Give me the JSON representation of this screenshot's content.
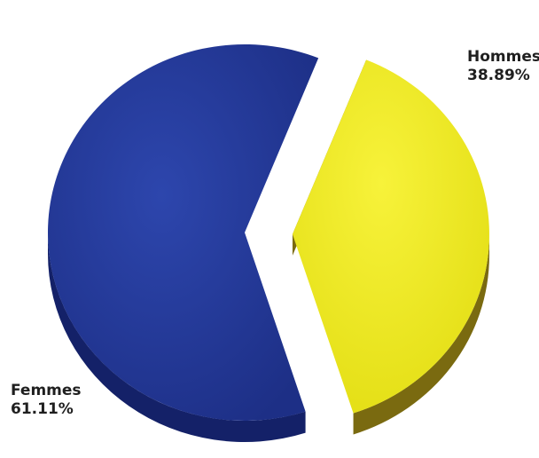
{
  "chart_data": {
    "type": "pie",
    "style": "3d-exploded",
    "title": "",
    "slices": [
      {
        "label": "Hommes",
        "value": 38.89,
        "value_text": "38.89%",
        "color": "#F2EE1E",
        "side_color": "#7A6A10",
        "exploded": true
      },
      {
        "label": "Femmes",
        "value": 61.11,
        "value_text": "61.11%",
        "color": "#23399A",
        "side_color": "#142168",
        "exploded": false
      }
    ]
  }
}
